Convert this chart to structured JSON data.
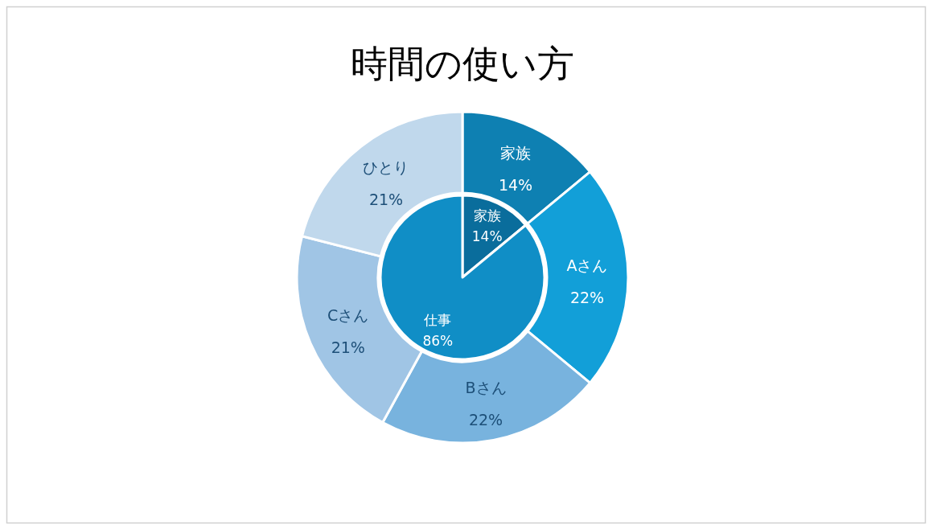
{
  "chart_data": [
    {
      "type": "donut",
      "title": "時間の使い方",
      "categories": [
        "家族",
        "Aさん",
        "Bさん",
        "Cさん",
        "ひとり"
      ],
      "values": [
        14,
        22,
        22,
        21,
        21
      ],
      "value_labels": [
        "14%",
        "22%",
        "22%",
        "21%",
        "21%"
      ],
      "colors": [
        "#0e80b2",
        "#129fd8",
        "#78b3de",
        "#a0c5e5",
        "#c0d8ec"
      ]
    },
    {
      "type": "pie",
      "categories": [
        "家族",
        "仕事"
      ],
      "values": [
        14,
        86
      ],
      "value_labels": [
        "14%",
        "86%"
      ],
      "colors": [
        "#0a6d9c",
        "#108ec6"
      ]
    }
  ]
}
